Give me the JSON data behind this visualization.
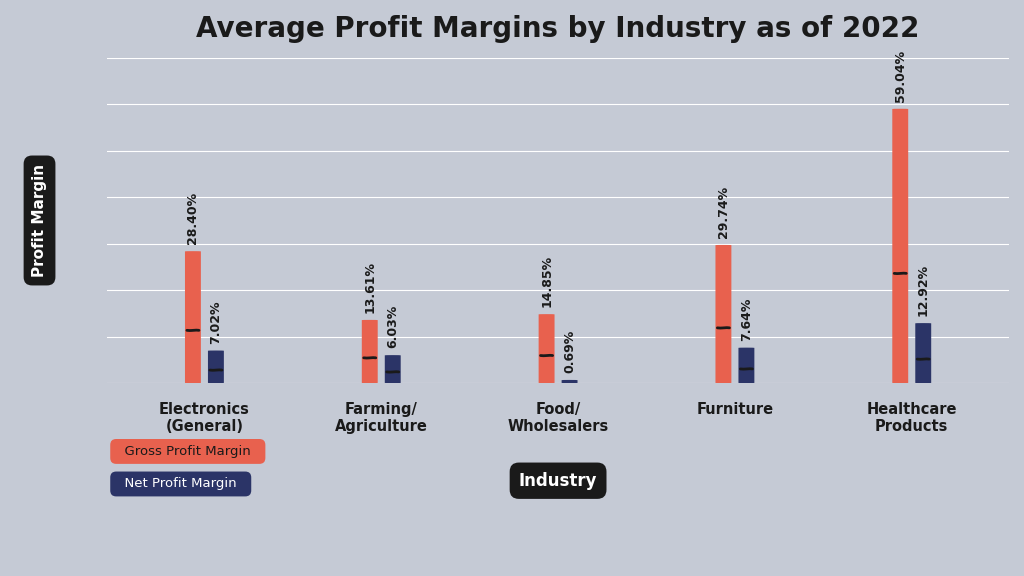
{
  "title": "Average Profit Margins by Industry as of 2022",
  "categories": [
    "Electronics\n(General)",
    "Farming/\nAgriculture",
    "Food/\nWholesalers",
    "Furniture",
    "Healthcare\nProducts"
  ],
  "gross_profit": [
    28.4,
    13.61,
    14.85,
    29.74,
    59.04
  ],
  "net_profit": [
    7.02,
    6.03,
    0.69,
    7.64,
    12.92
  ],
  "gross_color": "#E8614E",
  "net_color": "#2B3467",
  "background_color": "#C5CAD5",
  "title_fontsize": 20,
  "ylabel": "Profit Margin",
  "xlabel": "Industry",
  "ylim": [
    0,
    70
  ],
  "grid_color": "#FFFFFF",
  "label_color": "#1a1a1a",
  "wave_color": "#1a1a1a",
  "bar_width": 0.09,
  "bar_gap": 0.13
}
